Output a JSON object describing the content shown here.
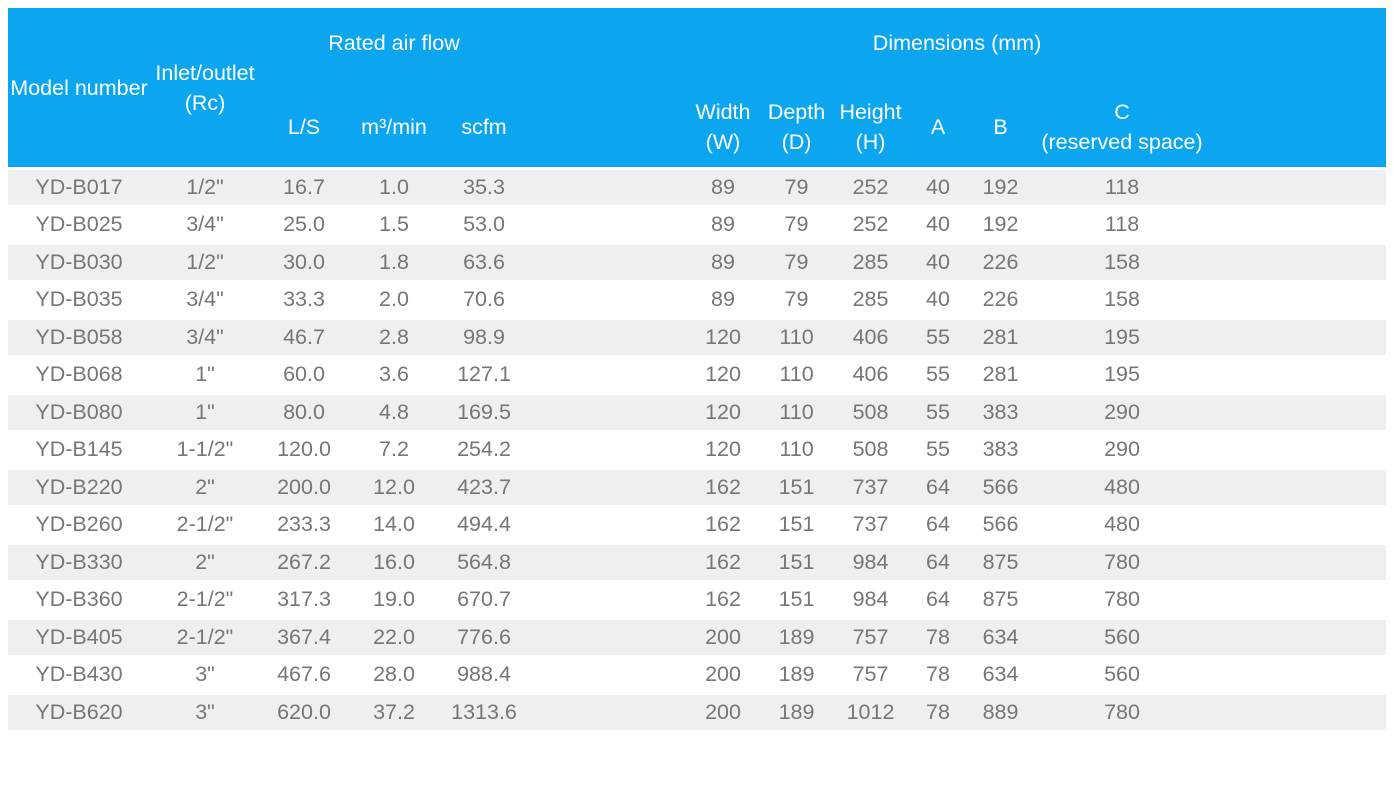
{
  "colors": {
    "header_bg": "#0ca6f0",
    "header_text": "#ffffff",
    "row_alt_bg": "#efefef",
    "row_bg": "#ffffff",
    "body_text": "#767676"
  },
  "table": {
    "group_headers": {
      "rated_air_flow": "Rated air flow",
      "dimensions": "Dimensions (mm)"
    },
    "column_headers": {
      "model_number": "Model number",
      "inlet_outlet": {
        "line1": "Inlet/outlet",
        "line2": "(Rc)"
      },
      "l_s": "L/S",
      "m3_min": "m³/min",
      "scfm": "scfm",
      "width": {
        "line1": "Width",
        "line2": "(W)"
      },
      "depth": {
        "line1": "Depth",
        "line2": "(D)"
      },
      "height": {
        "line1": "Height",
        "line2": "(H)"
      },
      "a": "A",
      "b": "B",
      "c": {
        "line1": "C",
        "line2": "(reserved space)"
      }
    },
    "column_keys": [
      "model-number",
      "inlet-outlet-rc",
      "l-s",
      "m3-min",
      "scfm",
      "width-w",
      "depth-d",
      "height-h",
      "a",
      "b",
      "c-reserved-space"
    ],
    "rows": [
      [
        "YD-B017",
        "1/2\"",
        "16.7",
        "1.0",
        "35.3",
        "89",
        "79",
        "252",
        "40",
        "192",
        "118"
      ],
      [
        "YD-B025",
        "3/4\"",
        "25.0",
        "1.5",
        "53.0",
        "89",
        "79",
        "252",
        "40",
        "192",
        "118"
      ],
      [
        "YD-B030",
        "1/2\"",
        "30.0",
        "1.8",
        "63.6",
        "89",
        "79",
        "285",
        "40",
        "226",
        "158"
      ],
      [
        "YD-B035",
        "3/4\"",
        "33.3",
        "2.0",
        "70.6",
        "89",
        "79",
        "285",
        "40",
        "226",
        "158"
      ],
      [
        "YD-B058",
        "3/4\"",
        "46.7",
        "2.8",
        "98.9",
        "120",
        "110",
        "406",
        "55",
        "281",
        "195"
      ],
      [
        "YD-B068",
        "1\"",
        "60.0",
        "3.6",
        "127.1",
        "120",
        "110",
        "406",
        "55",
        "281",
        "195"
      ],
      [
        "YD-B080",
        "1\"",
        "80.0",
        "4.8",
        "169.5",
        "120",
        "110",
        "508",
        "55",
        "383",
        "290"
      ],
      [
        "YD-B145",
        "1-1/2\"",
        "120.0",
        "7.2",
        "254.2",
        "120",
        "110",
        "508",
        "55",
        "383",
        "290"
      ],
      [
        "YD-B220",
        "2\"",
        "200.0",
        "12.0",
        "423.7",
        "162",
        "151",
        "737",
        "64",
        "566",
        "480"
      ],
      [
        "YD-B260",
        "2-1/2\"",
        "233.3",
        "14.0",
        "494.4",
        "162",
        "151",
        "737",
        "64",
        "566",
        "480"
      ],
      [
        "YD-B330",
        "2\"",
        "267.2",
        "16.0",
        "564.8",
        "162",
        "151",
        "984",
        "64",
        "875",
        "780"
      ],
      [
        "YD-B360",
        "2-1/2\"",
        "317.3",
        "19.0",
        "670.7",
        "162",
        "151",
        "984",
        "64",
        "875",
        "780"
      ],
      [
        "YD-B405",
        "2-1/2\"",
        "367.4",
        "22.0",
        "776.6",
        "200",
        "189",
        "757",
        "78",
        "634",
        "560"
      ],
      [
        "YD-B430",
        "3\"",
        "467.6",
        "28.0",
        "988.4",
        "200",
        "189",
        "757",
        "78",
        "634",
        "560"
      ],
      [
        "YD-B620",
        "3\"",
        "620.0",
        "37.2",
        "1313.6",
        "200",
        "189",
        "1012",
        "78",
        "889",
        "780"
      ]
    ]
  }
}
